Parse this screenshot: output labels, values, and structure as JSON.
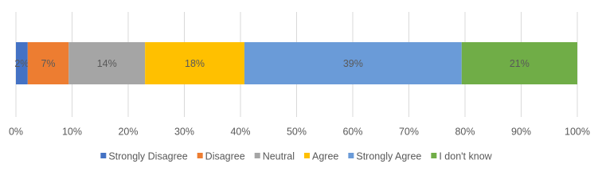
{
  "chart_data": {
    "type": "stacked-bar",
    "orientation": "horizontal",
    "series": [
      {
        "name": "Strongly Disagree",
        "color": "#4472c4",
        "values": [
          2.1
        ],
        "value_labels": [
          "2%"
        ]
      },
      {
        "name": "Disagree",
        "color": "#ed7d31",
        "values": [
          7.3
        ],
        "value_labels": [
          "7%"
        ]
      },
      {
        "name": "Neutral",
        "color": "#a5a5a5",
        "values": [
          13.6
        ],
        "value_labels": [
          "14%"
        ]
      },
      {
        "name": "Agree",
        "color": "#ffc000",
        "values": [
          17.7
        ],
        "value_labels": [
          "18%"
        ]
      },
      {
        "name": "Strongly Agree",
        "color": "#6a9bd8",
        "values": [
          38.7
        ],
        "value_labels": [
          "39%"
        ]
      },
      {
        "name": "I don't know",
        "color": "#70ad47",
        "values": [
          20.6
        ],
        "value_labels": [
          "21%"
        ]
      }
    ],
    "xlim": [
      0,
      100
    ],
    "xticks": [
      {
        "value": 0,
        "label": "0%"
      },
      {
        "value": 10,
        "label": "10%"
      },
      {
        "value": 20,
        "label": "20%"
      },
      {
        "value": 30,
        "label": "30%"
      },
      {
        "value": 40,
        "label": "40%"
      },
      {
        "value": 50,
        "label": "50%"
      },
      {
        "value": 60,
        "label": "60%"
      },
      {
        "value": 70,
        "label": "70%"
      },
      {
        "value": 80,
        "label": "80%"
      },
      {
        "value": 90,
        "label": "90%"
      },
      {
        "value": 100,
        "label": "100%"
      }
    ],
    "grid": true,
    "legend": "bottom"
  }
}
